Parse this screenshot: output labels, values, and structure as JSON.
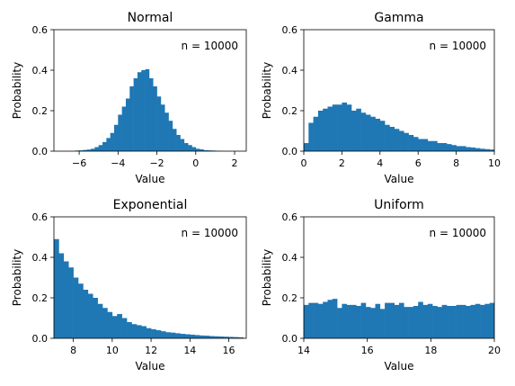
{
  "chart_data": [
    {
      "type": "bar",
      "title": "Normal",
      "xlabel": "Value",
      "ylabel": "Probability",
      "annotation": "n = 10000",
      "xlim": [
        -7.3,
        2.6
      ],
      "ylim": [
        0,
        0.6
      ],
      "xticks": [
        -6,
        -4,
        -2,
        0,
        2
      ],
      "yticks": [
        0.0,
        0.2,
        0.4,
        0.6
      ],
      "color": "#1f77b4",
      "bins": [
        -6.2,
        -6.0,
        -5.8,
        -5.6,
        -5.4,
        -5.2,
        -5.0,
        -4.8,
        -4.6,
        -4.4,
        -4.2,
        -4.0,
        -3.8,
        -3.6,
        -3.4,
        -3.2,
        -3.0,
        -2.8,
        -2.6,
        -2.4,
        -2.2,
        -2.0,
        -1.8,
        -1.6,
        -1.4,
        -1.2,
        -1.0,
        -0.8,
        -0.6,
        -0.4,
        -0.2,
        0.0,
        0.2,
        0.4,
        0.6,
        0.8,
        1.0,
        1.2
      ],
      "values": [
        0.003,
        0.004,
        0.006,
        0.008,
        0.012,
        0.02,
        0.03,
        0.045,
        0.065,
        0.09,
        0.13,
        0.18,
        0.22,
        0.26,
        0.32,
        0.36,
        0.39,
        0.4,
        0.405,
        0.36,
        0.32,
        0.27,
        0.23,
        0.19,
        0.15,
        0.11,
        0.08,
        0.06,
        0.04,
        0.03,
        0.02,
        0.012,
        0.009,
        0.005,
        0.004,
        0.003,
        0.002,
        0.001
      ]
    },
    {
      "type": "bar",
      "title": "Gamma",
      "xlabel": "Value",
      "ylabel": "Probability",
      "annotation": "n = 10000",
      "xlim": [
        0,
        10
      ],
      "ylim": [
        0,
        0.6
      ],
      "xticks": [
        0,
        2,
        4,
        6,
        8,
        10
      ],
      "yticks": [
        0.0,
        0.2,
        0.4,
        0.6
      ],
      "color": "#1f77b4",
      "bins": [
        0.0,
        0.25,
        0.5,
        0.75,
        1.0,
        1.25,
        1.5,
        1.75,
        2.0,
        2.25,
        2.5,
        2.75,
        3.0,
        3.25,
        3.5,
        3.75,
        4.0,
        4.25,
        4.5,
        4.75,
        5.0,
        5.25,
        5.5,
        5.75,
        6.0,
        6.25,
        6.5,
        6.75,
        7.0,
        7.25,
        7.5,
        7.75,
        8.0,
        8.25,
        8.5,
        8.75,
        9.0,
        9.25,
        9.5,
        9.75
      ],
      "values": [
        0.04,
        0.14,
        0.17,
        0.2,
        0.21,
        0.22,
        0.23,
        0.23,
        0.24,
        0.23,
        0.2,
        0.21,
        0.19,
        0.18,
        0.17,
        0.16,
        0.15,
        0.13,
        0.12,
        0.11,
        0.1,
        0.09,
        0.08,
        0.07,
        0.06,
        0.06,
        0.05,
        0.05,
        0.04,
        0.04,
        0.035,
        0.03,
        0.025,
        0.025,
        0.02,
        0.018,
        0.015,
        0.012,
        0.01,
        0.008
      ]
    },
    {
      "type": "bar",
      "title": "Exponential",
      "xlabel": "Value",
      "ylabel": "Probability",
      "annotation": "n = 10000",
      "xlim": [
        7,
        16.9
      ],
      "ylim": [
        0,
        0.6
      ],
      "xticks": [
        8,
        10,
        12,
        14,
        16
      ],
      "yticks": [
        0.0,
        0.2,
        0.4,
        0.6
      ],
      "color": "#1f77b4",
      "bins": [
        7.0,
        7.25,
        7.5,
        7.75,
        8.0,
        8.25,
        8.5,
        8.75,
        9.0,
        9.25,
        9.5,
        9.75,
        10.0,
        10.25,
        10.5,
        10.75,
        11.0,
        11.25,
        11.5,
        11.75,
        12.0,
        12.25,
        12.5,
        12.75,
        13.0,
        13.25,
        13.5,
        13.75,
        14.0,
        14.25,
        14.5,
        14.75,
        15.0,
        15.25,
        15.5,
        15.75,
        16.0,
        16.25,
        16.5
      ],
      "values": [
        0.49,
        0.42,
        0.38,
        0.35,
        0.3,
        0.27,
        0.24,
        0.22,
        0.2,
        0.17,
        0.15,
        0.13,
        0.11,
        0.12,
        0.1,
        0.08,
        0.07,
        0.065,
        0.06,
        0.05,
        0.045,
        0.04,
        0.035,
        0.03,
        0.028,
        0.025,
        0.022,
        0.02,
        0.018,
        0.016,
        0.014,
        0.013,
        0.011,
        0.01,
        0.009,
        0.008,
        0.007,
        0.006,
        0.005
      ]
    },
    {
      "type": "bar",
      "title": "Uniform",
      "xlabel": "Value",
      "ylabel": "Probability",
      "annotation": "n = 10000",
      "xlim": [
        14,
        20
      ],
      "ylim": [
        0,
        0.6
      ],
      "xticks": [
        14,
        16,
        18,
        20
      ],
      "yticks": [
        0.0,
        0.2,
        0.4,
        0.6
      ],
      "color": "#1f77b4",
      "bins": [
        14.0,
        14.15,
        14.3,
        14.45,
        14.6,
        14.75,
        14.9,
        15.05,
        15.2,
        15.35,
        15.5,
        15.65,
        15.8,
        15.95,
        16.1,
        16.25,
        16.4,
        16.55,
        16.7,
        16.85,
        17.0,
        17.15,
        17.3,
        17.45,
        17.6,
        17.75,
        17.9,
        18.05,
        18.2,
        18.35,
        18.5,
        18.65,
        18.8,
        18.95,
        19.1,
        19.25,
        19.4,
        19.55,
        19.7,
        19.85
      ],
      "values": [
        0.165,
        0.175,
        0.175,
        0.17,
        0.18,
        0.19,
        0.195,
        0.15,
        0.17,
        0.165,
        0.165,
        0.16,
        0.175,
        0.155,
        0.15,
        0.17,
        0.145,
        0.175,
        0.175,
        0.165,
        0.175,
        0.155,
        0.155,
        0.16,
        0.18,
        0.165,
        0.17,
        0.16,
        0.155,
        0.165,
        0.16,
        0.16,
        0.165,
        0.165,
        0.16,
        0.165,
        0.17,
        0.165,
        0.17,
        0.175
      ]
    }
  ]
}
